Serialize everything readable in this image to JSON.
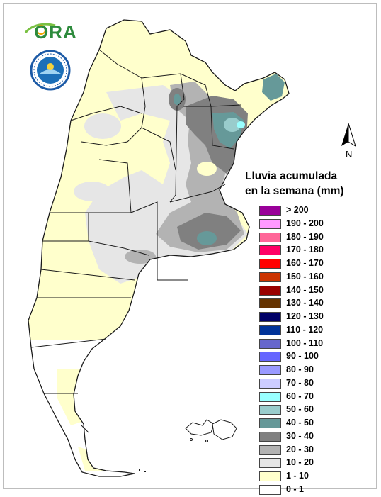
{
  "legend": {
    "title_line1": "Lluvia acumulada",
    "title_line2": "en la semana (mm)",
    "items": [
      {
        "label": "> 200",
        "color": "#990099"
      },
      {
        "label": "190 - 200",
        "color": "#ff99ff"
      },
      {
        "label": "180 - 190",
        "color": "#ff6699"
      },
      {
        "label": "170 - 180",
        "color": "#ff0066"
      },
      {
        "label": "160 - 170",
        "color": "#ff0000"
      },
      {
        "label": "150 - 160",
        "color": "#cc3300"
      },
      {
        "label": "140 - 150",
        "color": "#990000"
      },
      {
        "label": "130 - 140",
        "color": "#663300"
      },
      {
        "label": "120 - 130",
        "color": "#000066"
      },
      {
        "label": "110 - 120",
        "color": "#003399"
      },
      {
        "label": "100 - 110",
        "color": "#6666cc"
      },
      {
        "label": "90 - 100",
        "color": "#6666ff"
      },
      {
        "label": "80 - 90",
        "color": "#9999ff"
      },
      {
        "label": "70 - 80",
        "color": "#ccccff"
      },
      {
        "label": "60 - 70",
        "color": "#99ffff"
      },
      {
        "label": "50 - 60",
        "color": "#99cccc"
      },
      {
        "label": "40 - 50",
        "color": "#669999"
      },
      {
        "label": "30 - 40",
        "color": "#808080"
      },
      {
        "label": "20 - 30",
        "color": "#b3b3b3"
      },
      {
        "label": "10 - 20",
        "color": "#e6e6e6"
      },
      {
        "label": "1 - 10",
        "color": "#ffffcc"
      },
      {
        "label": "0 - 1",
        "color": "#ffffff"
      }
    ]
  },
  "north_arrow": {
    "label": "N"
  },
  "logos": {
    "ora": "ORA",
    "seal_icon": "smn-seal-icon"
  },
  "map_colors": {
    "border": "#1a1a1a",
    "class_0_1": "#ffffff",
    "class_1_10": "#ffffcc",
    "class_10_20": "#e6e6e6",
    "class_20_30": "#b3b3b3",
    "class_30_40": "#808080",
    "class_40_50": "#669999",
    "class_50_60": "#99cccc",
    "class_60_70": "#99ffff"
  }
}
